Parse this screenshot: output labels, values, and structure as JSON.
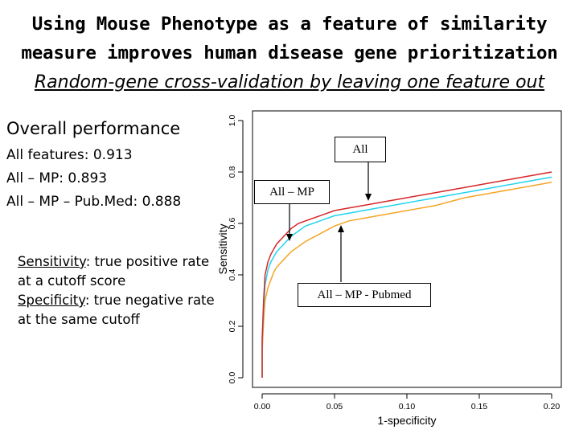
{
  "slide": {
    "title_line1": "Using Mouse Phenotype as a feature of similarity",
    "title_line2": "measure improves human disease gene prioritization",
    "subtitle": "Random-gene cross-validation by leaving one feature out",
    "performance": {
      "heading": "Overall performance",
      "lines": [
        "All features: 0.913",
        "All – MP: 0.893",
        "All – MP – Pub.Med: 0.888"
      ]
    },
    "definitions": {
      "sens_term": "Sensitivity",
      "sens_text": ": true positive rate at a cutoff score",
      "spec_term": "Specificity",
      "spec_text": ": true negative rate at the same cutoff"
    },
    "callouts": {
      "all": "All",
      "all_mp": "All – MP",
      "all_mp_pubmed": "All – MP - Pubmed"
    }
  },
  "chart_data": {
    "type": "line",
    "xlabel": "1-specificity",
    "ylabel": "Sensitivity",
    "xlim": [
      0,
      0.2
    ],
    "ylim": [
      0,
      1.0
    ],
    "xticks": [
      "0.00",
      "0.05",
      "0.10",
      "0.15",
      "0.20"
    ],
    "yticks": [
      "0.0",
      "0.2",
      "0.4",
      "0.6",
      "0.8",
      "1.0"
    ],
    "grid": false,
    "colors": [
      "#d62728",
      "#22d3ee",
      "#f5a524"
    ],
    "series": [
      {
        "x": [
          0,
          0,
          0.001,
          0.002,
          0.004,
          0.006,
          0.008,
          0.01,
          0.015,
          0.02,
          0.025,
          0.03,
          0.04,
          0.05,
          0.06,
          0.07,
          0.08,
          0.1,
          0.12,
          0.14,
          0.16,
          0.18,
          0.2
        ],
        "values": [
          0,
          0.15,
          0.3,
          0.4,
          0.45,
          0.48,
          0.5,
          0.52,
          0.55,
          0.58,
          0.6,
          0.61,
          0.63,
          0.65,
          0.66,
          0.67,
          0.68,
          0.7,
          0.72,
          0.74,
          0.76,
          0.78,
          0.8
        ]
      },
      {
        "x": [
          0,
          0,
          0.001,
          0.002,
          0.004,
          0.006,
          0.008,
          0.01,
          0.015,
          0.02,
          0.025,
          0.03,
          0.04,
          0.05,
          0.06,
          0.07,
          0.08,
          0.1,
          0.12,
          0.14,
          0.16,
          0.18,
          0.2
        ],
        "values": [
          0,
          0.13,
          0.27,
          0.36,
          0.42,
          0.45,
          0.47,
          0.49,
          0.52,
          0.55,
          0.57,
          0.59,
          0.61,
          0.63,
          0.64,
          0.65,
          0.66,
          0.68,
          0.7,
          0.72,
          0.74,
          0.76,
          0.78
        ]
      },
      {
        "x": [
          0,
          0,
          0.001,
          0.002,
          0.004,
          0.006,
          0.008,
          0.01,
          0.015,
          0.02,
          0.025,
          0.03,
          0.04,
          0.05,
          0.06,
          0.07,
          0.08,
          0.1,
          0.12,
          0.14,
          0.16,
          0.18,
          0.2
        ],
        "values": [
          0,
          0.1,
          0.22,
          0.3,
          0.35,
          0.38,
          0.41,
          0.43,
          0.46,
          0.49,
          0.51,
          0.53,
          0.56,
          0.59,
          0.61,
          0.62,
          0.63,
          0.65,
          0.67,
          0.7,
          0.72,
          0.74,
          0.76
        ]
      }
    ]
  }
}
